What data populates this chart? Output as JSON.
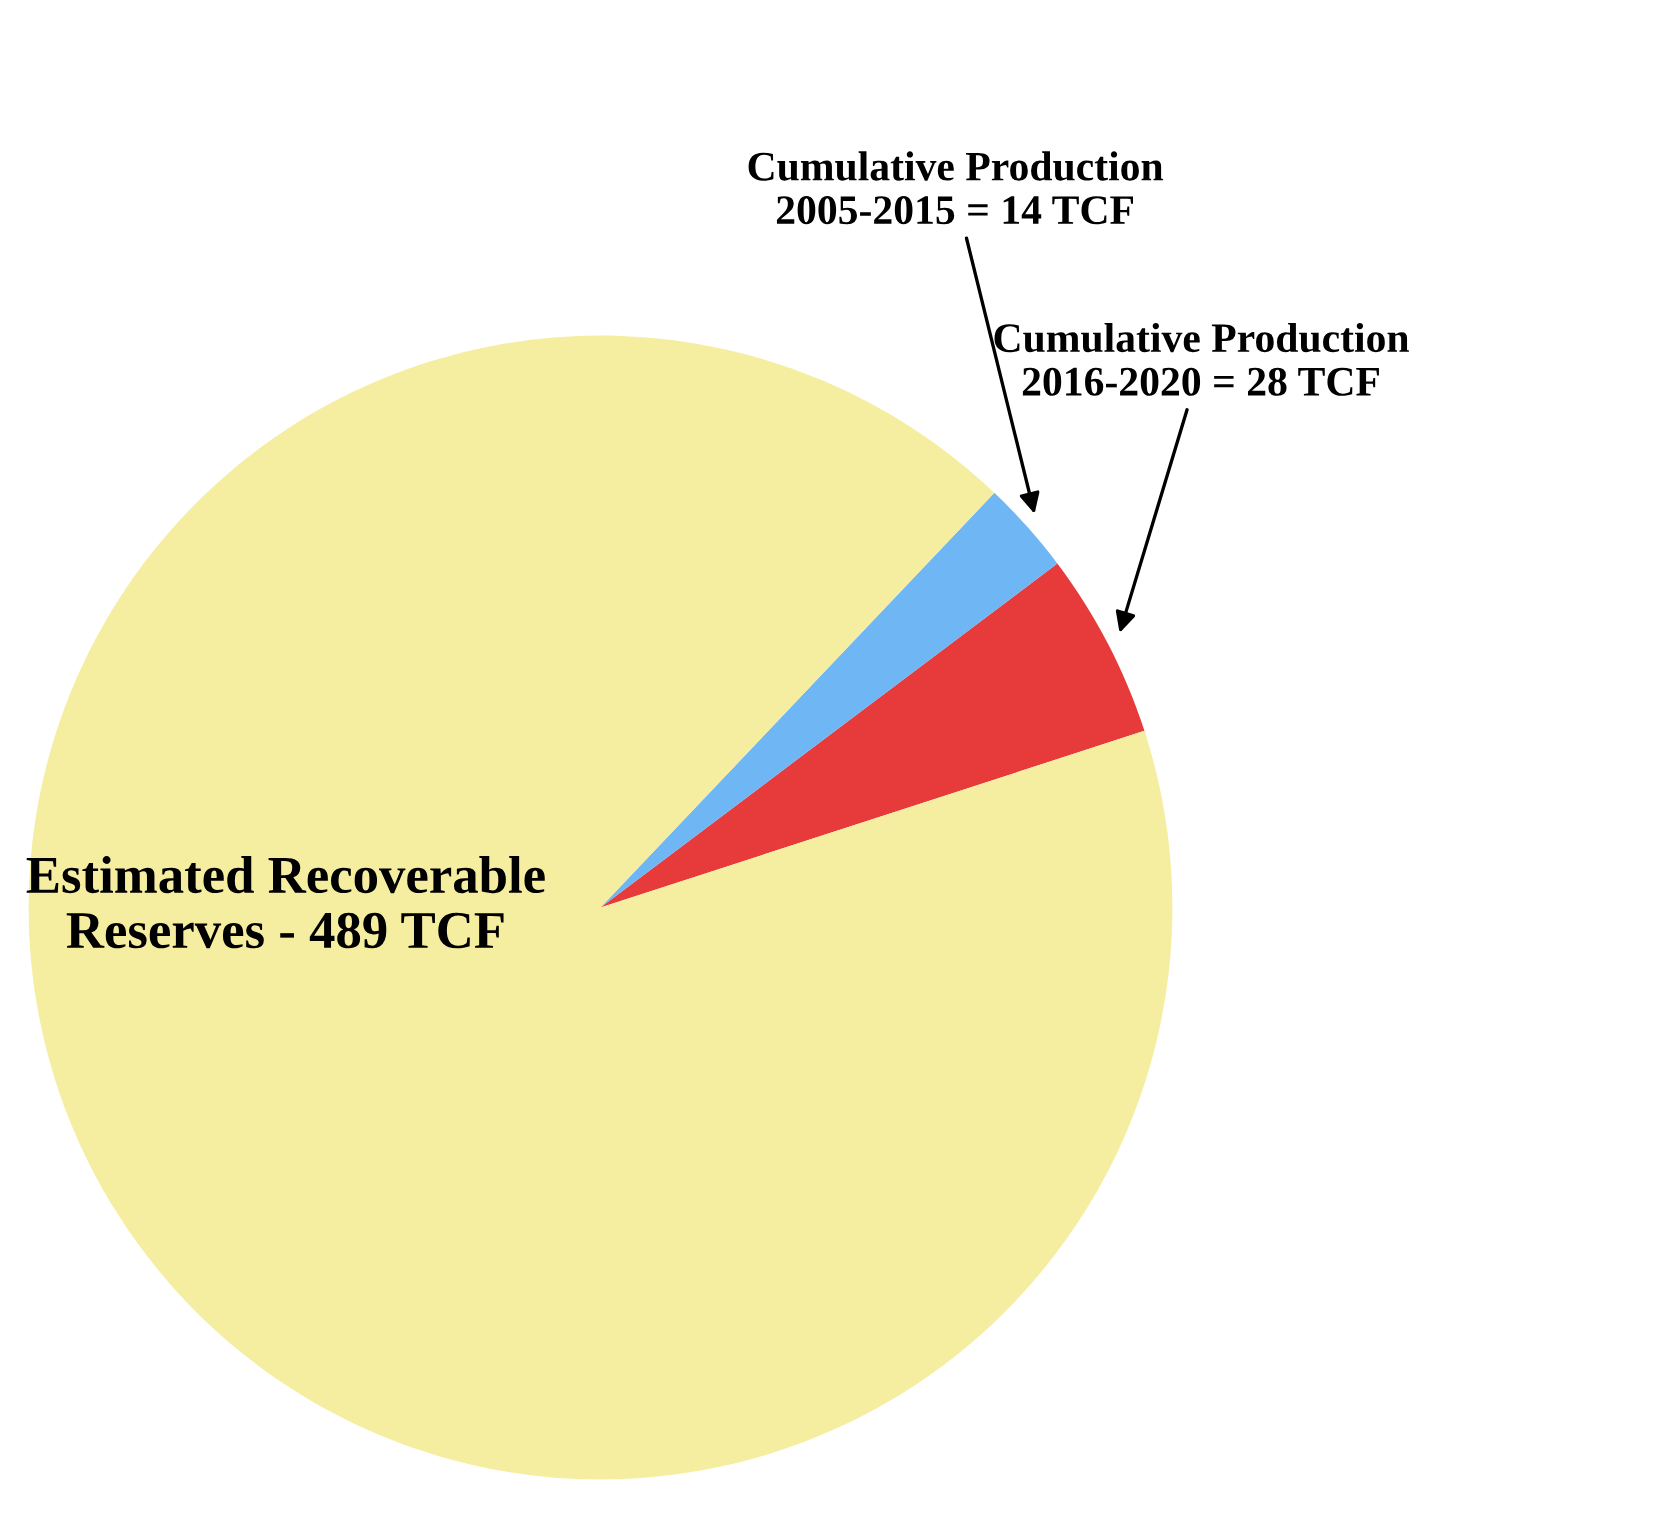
{
  "chart_data": {
    "type": "pie",
    "categories": [
      "Cumulative Production\n2016-2020 = 28 TCF",
      "Cumulative Production\n2005-2015 = 14 TCF",
      "Estimated Recoverable\nReserves - 489 TCF"
    ],
    "values": [
      28,
      14,
      489
    ],
    "colors": [
      "#e63b3a",
      "#6fb6f5",
      "#f5eea0"
    ]
  }
}
